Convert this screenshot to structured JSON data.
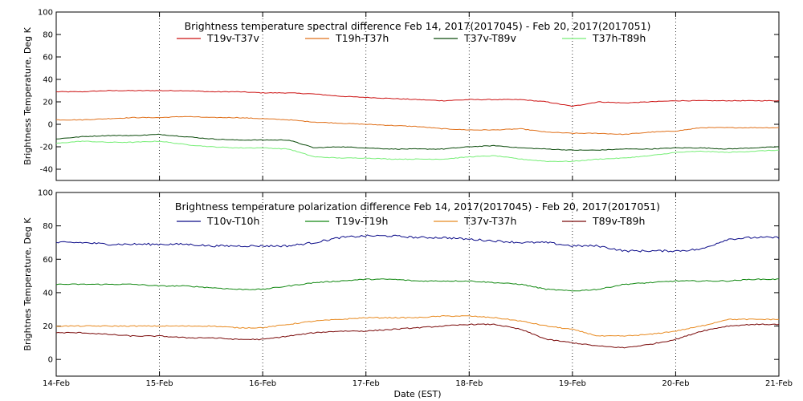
{
  "chart_data": [
    {
      "type": "line",
      "title": "Brightness temperature spectral difference      Feb 14, 2017(2017045) - Feb 20, 2017(2017051)",
      "xlabel": "",
      "ylabel": "Brightness Temperature, Deg K",
      "xlim": [
        0,
        7
      ],
      "ylim": [
        -50,
        100
      ],
      "yticks": [
        -40,
        -20,
        0,
        20,
        40,
        60,
        80,
        100
      ],
      "grid": "dotted vertical lines at each day",
      "legend_position": "top",
      "x": [
        0,
        0.25,
        0.5,
        0.75,
        1,
        1.25,
        1.5,
        1.75,
        2,
        2.25,
        2.5,
        2.75,
        3,
        3.25,
        3.5,
        3.75,
        4,
        4.25,
        4.5,
        4.75,
        5,
        5.25,
        5.5,
        5.75,
        6,
        6.25,
        6.5,
        6.75,
        7
      ],
      "series": [
        {
          "name": "T19v-T37v",
          "color": "#cc1111",
          "values": [
            29,
            29,
            30,
            30,
            30,
            30,
            29,
            29,
            28,
            28,
            27,
            25,
            24,
            23,
            22,
            21,
            22,
            22,
            22,
            20,
            16,
            20,
            19,
            20,
            21,
            21,
            21,
            21,
            21
          ]
        },
        {
          "name": "T19h-T37h",
          "color": "#e0701a",
          "values": [
            4,
            4,
            5,
            6,
            6,
            7,
            6,
            6,
            5,
            4,
            2,
            1,
            0,
            -1,
            -2,
            -4,
            -5,
            -5,
            -4,
            -7,
            -8,
            -8,
            -9,
            -7,
            -6,
            -3,
            -3,
            -3,
            -3
          ]
        },
        {
          "name": "T37v-T89v",
          "color": "#0a4a0a",
          "values": [
            -13,
            -11,
            -10,
            -10,
            -9,
            -11,
            -13,
            -14,
            -14,
            -14,
            -21,
            -20,
            -21,
            -22,
            -22,
            -22,
            -20,
            -19,
            -21,
            -22,
            -23,
            -23,
            -22,
            -22,
            -21,
            -21,
            -22,
            -21,
            -20
          ]
        },
        {
          "name": "T37h-T89h",
          "color": "#77ee77",
          "values": [
            -17,
            -15,
            -16,
            -16,
            -15,
            -18,
            -20,
            -21,
            -21,
            -22,
            -29,
            -30,
            -30,
            -31,
            -31,
            -31,
            -29,
            -28,
            -31,
            -33,
            -33,
            -31,
            -30,
            -28,
            -25,
            -24,
            -25,
            -24,
            -23
          ]
        }
      ]
    },
    {
      "type": "line",
      "title": "Brightness temperature polarization difference     Feb 14, 2017(2017045) - Feb 20, 2017(2017051)",
      "xlabel": "Date (EST)",
      "ylabel": "Brightnes Temperature, Deg K",
      "xlim": [
        0,
        7
      ],
      "ylim": [
        -10,
        100
      ],
      "yticks": [
        0,
        20,
        40,
        60,
        80,
        100
      ],
      "xticks": [
        "14-Feb",
        "15-Feb",
        "16-Feb",
        "17-Feb",
        "18-Feb",
        "19-Feb",
        "20-Feb",
        "21-Feb"
      ],
      "grid": "dotted vertical lines at each day",
      "legend_position": "top",
      "x": [
        0,
        0.25,
        0.5,
        0.75,
        1,
        1.25,
        1.5,
        1.75,
        2,
        2.25,
        2.5,
        2.75,
        3,
        3.25,
        3.5,
        3.75,
        4,
        4.25,
        4.5,
        4.75,
        5,
        5.25,
        5.5,
        5.75,
        6,
        6.25,
        6.5,
        6.75,
        7
      ],
      "series": [
        {
          "name": "T10v-T10h",
          "color": "#0a0a88",
          "values": [
            70,
            70,
            69,
            69,
            69,
            69,
            68,
            68,
            68,
            68,
            70,
            73,
            74,
            74,
            73,
            73,
            72,
            71,
            70,
            70,
            68,
            68,
            65,
            65,
            65,
            66,
            72,
            73,
            73
          ]
        },
        {
          "name": "T19v-T19h",
          "color": "#118811",
          "values": [
            45,
            45,
            45,
            45,
            44,
            44,
            43,
            42,
            42,
            44,
            46,
            47,
            48,
            48,
            47,
            47,
            47,
            46,
            45,
            42,
            41,
            42,
            45,
            46,
            47,
            47,
            47,
            48,
            48
          ]
        },
        {
          "name": "T37v-T37h",
          "color": "#e88a20",
          "values": [
            20,
            20,
            20,
            20,
            20,
            20,
            20,
            19,
            19,
            21,
            23,
            24,
            25,
            25,
            25,
            26,
            26,
            25,
            23,
            20,
            18,
            14,
            14,
            15,
            17,
            20,
            24,
            24,
            24
          ]
        },
        {
          "name": "T89v-T89h",
          "color": "#7a0a0a",
          "values": [
            16,
            16,
            15,
            14,
            14,
            13,
            13,
            12,
            12,
            14,
            16,
            17,
            17,
            18,
            19,
            20,
            21,
            21,
            18,
            12,
            10,
            8,
            7,
            9,
            12,
            17,
            20,
            21,
            21
          ]
        }
      ]
    }
  ]
}
